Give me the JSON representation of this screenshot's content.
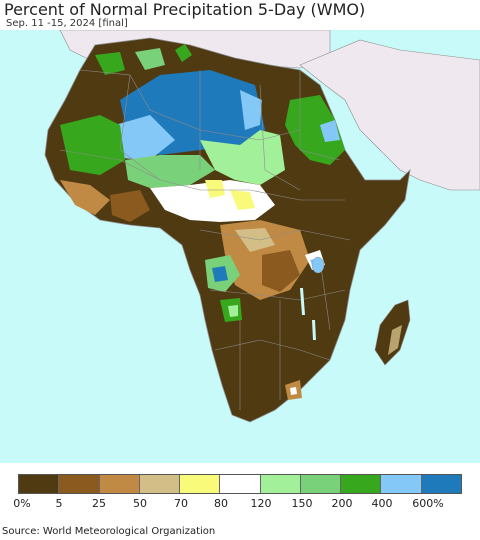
{
  "title": "Percent of Normal Precipitation 5-Day (WMO)",
  "subtitle": "Sep. 11 -15, 2024 [final]",
  "source": "Source: World Meteorological Organization",
  "legend": {
    "colors": [
      "#4f3a12",
      "#8a5a1e",
      "#c08a44",
      "#d2be86",
      "#fafa7a",
      "#ffffff",
      "#a2f09a",
      "#79d279",
      "#37a81e",
      "#84c8f8",
      "#1f7abb"
    ],
    "labels": [
      "0%",
      "5",
      "25",
      "50",
      "70",
      "80",
      "120",
      "150",
      "200",
      "400",
      "600%"
    ]
  },
  "map_colors": {
    "ocean": "#c9fafa",
    "no_data_land": "#efe9ef",
    "border": "#8c8c8c"
  }
}
